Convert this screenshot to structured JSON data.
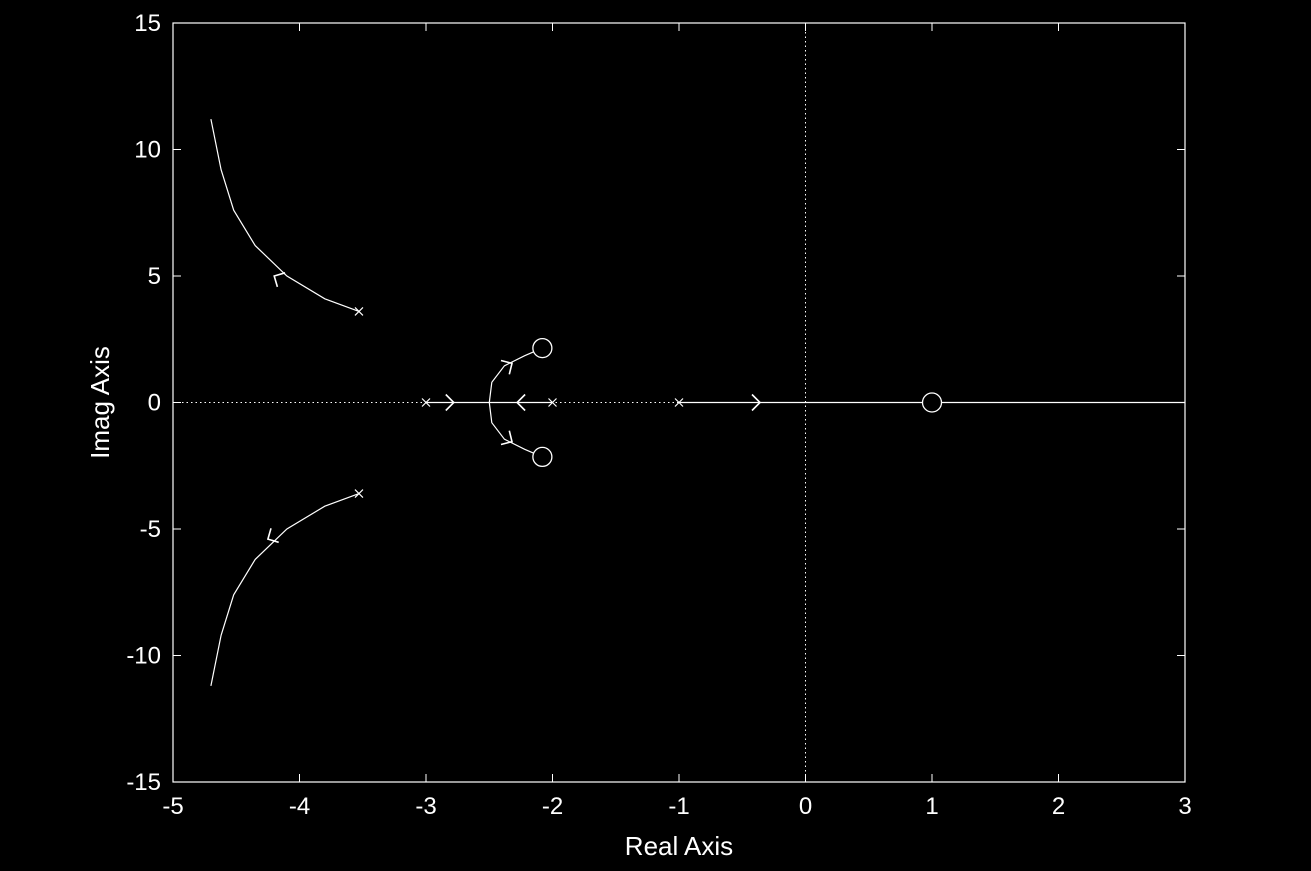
{
  "chart_data": {
    "type": "scatter",
    "title": "",
    "xlabel": "Real Axis",
    "ylabel": "Imag Axis",
    "xlim": [
      -5,
      3
    ],
    "ylim": [
      -15,
      15
    ],
    "xticks": [
      -5,
      -4,
      -3,
      -2,
      -1,
      0,
      1,
      2,
      3
    ],
    "yticks": [
      -15,
      -10,
      -5,
      0,
      5,
      10,
      15
    ],
    "grid": false,
    "zero_lines": "dotted",
    "colors": {
      "background": "#000000",
      "foreground": "#ffffff"
    },
    "poles": [
      [
        -3.53,
        3.6
      ],
      [
        -3.53,
        -3.6
      ],
      [
        -3,
        0
      ],
      [
        -2,
        0
      ],
      [
        -1,
        0
      ]
    ],
    "zeros": [
      [
        -2.08,
        2.15
      ],
      [
        -2.08,
        -2.15
      ],
      [
        1.0,
        0
      ]
    ],
    "series": [
      {
        "points": [
          [
            -3.53,
            3.6
          ],
          [
            -3.8,
            4.1
          ],
          [
            -4.1,
            5.0
          ],
          [
            -4.35,
            6.2
          ],
          [
            -4.52,
            7.6
          ],
          [
            -4.62,
            9.2
          ],
          [
            -4.7,
            11.2
          ]
        ]
      },
      {
        "points": [
          [
            -3.53,
            -3.6
          ],
          [
            -3.8,
            -4.1
          ],
          [
            -4.1,
            -5.0
          ],
          [
            -4.35,
            -6.2
          ],
          [
            -4.52,
            -7.6
          ],
          [
            -4.62,
            -9.2
          ],
          [
            -4.7,
            -11.2
          ]
        ]
      },
      {
        "points": [
          [
            -3,
            0
          ],
          [
            -2.5,
            0
          ]
        ]
      },
      {
        "points": [
          [
            -2,
            0
          ],
          [
            -2.5,
            0
          ]
        ]
      },
      {
        "points": [
          [
            -2.5,
            0
          ],
          [
            -2.48,
            0.8
          ],
          [
            -2.38,
            1.45
          ],
          [
            -2.22,
            1.85
          ],
          [
            -2.08,
            2.15
          ]
        ]
      },
      {
        "points": [
          [
            -2.5,
            0
          ],
          [
            -2.48,
            -0.8
          ],
          [
            -2.38,
            -1.45
          ],
          [
            -2.22,
            -1.85
          ],
          [
            -2.08,
            -2.15
          ]
        ]
      },
      {
        "points": [
          [
            -1,
            0
          ],
          [
            1.0,
            0
          ]
        ]
      },
      {
        "points": [
          [
            1.0,
            0
          ],
          [
            3.0,
            0
          ]
        ]
      }
    ],
    "direction_arrows": [
      {
        "at": [
          -2.78,
          0
        ],
        "dir": "right"
      },
      {
        "at": [
          -2.28,
          0
        ],
        "dir": "left"
      },
      {
        "at": [
          -0.36,
          0
        ],
        "dir": "right"
      },
      {
        "at": [
          -4.2,
          5.0
        ],
        "dir": [
          -1,
          0.55
        ]
      },
      {
        "at": [
          -4.25,
          -5.4
        ],
        "dir": [
          -1,
          -0.55
        ]
      },
      {
        "at": [
          -2.32,
          1.55
        ],
        "dir": [
          1,
          0.6
        ]
      },
      {
        "at": [
          -2.32,
          -1.55
        ],
        "dir": [
          1,
          -0.6
        ]
      }
    ]
  }
}
